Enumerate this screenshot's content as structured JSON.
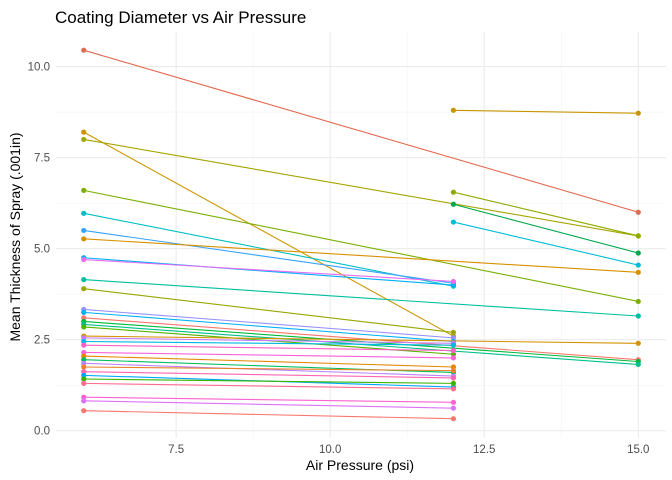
{
  "chart_data": {
    "type": "line",
    "title": "Coating Diameter vs Air Pressure",
    "xlabel": "Air Pressure (psi)",
    "ylabel": "Mean Thickness of Spray (.001in)",
    "xlim": [
      5.55,
      15.45
    ],
    "ylim": [
      -0.2,
      10.95
    ],
    "x_ticks": [
      7.5,
      10.0,
      12.5,
      15.0
    ],
    "x_tick_labels": [
      "7.5",
      "10.0",
      "12.5",
      "15.0"
    ],
    "y_ticks": [
      0.0,
      2.5,
      5.0,
      7.5,
      10.0
    ],
    "y_tick_labels": [
      "0.0",
      "2.5",
      "5.0",
      "7.5",
      "10.0"
    ],
    "grid": true,
    "legend": "none",
    "series": [
      {
        "color": "#E16A50",
        "points": [
          [
            6,
            10.45
          ],
          [
            15,
            6.0
          ]
        ]
      },
      {
        "color": "#C99400",
        "points": [
          [
            12,
            8.8
          ],
          [
            15,
            8.72
          ]
        ]
      },
      {
        "color": "#CD9600",
        "points": [
          [
            6,
            8.2
          ],
          [
            12,
            2.6
          ]
        ]
      },
      {
        "color": "#A3A500",
        "points": [
          [
            6,
            8.0
          ],
          [
            15,
            5.35
          ]
        ]
      },
      {
        "color": "#7CAE00",
        "points": [
          [
            6,
            6.6
          ],
          [
            15,
            3.55
          ]
        ]
      },
      {
        "color": "#8FAA00",
        "points": [
          [
            12,
            6.55
          ],
          [
            15,
            5.35
          ]
        ]
      },
      {
        "color": "#00A84C",
        "points": [
          [
            12,
            6.22
          ],
          [
            15,
            4.88
          ]
        ]
      },
      {
        "color": "#00BFC4",
        "points": [
          [
            6,
            5.97
          ],
          [
            12,
            3.97
          ]
        ]
      },
      {
        "color": "#00BCD8",
        "points": [
          [
            12,
            5.73
          ],
          [
            15,
            4.55
          ]
        ]
      },
      {
        "color": "#35A2FF",
        "points": [
          [
            6,
            5.5
          ],
          [
            12,
            4.05
          ]
        ]
      },
      {
        "color": "#D89000",
        "points": [
          [
            6,
            5.27
          ],
          [
            15,
            4.35
          ]
        ]
      },
      {
        "color": "#00B0F6",
        "points": [
          [
            6,
            4.75
          ],
          [
            12,
            4.0
          ]
        ]
      },
      {
        "color": "#E76BF3",
        "points": [
          [
            6,
            4.7
          ],
          [
            12,
            4.1
          ]
        ]
      },
      {
        "color": "#00BFA0",
        "points": [
          [
            6,
            4.15
          ],
          [
            15,
            3.15
          ]
        ]
      },
      {
        "color": "#9AA600",
        "points": [
          [
            6,
            3.9
          ],
          [
            12,
            2.7
          ]
        ]
      },
      {
        "color": "#9590FF",
        "points": [
          [
            6,
            3.33
          ],
          [
            12,
            2.55
          ]
        ]
      },
      {
        "color": "#00B0F6",
        "points": [
          [
            6,
            3.25
          ],
          [
            12,
            2.45
          ]
        ]
      },
      {
        "color": "#F8766D",
        "points": [
          [
            6,
            3.1
          ],
          [
            15,
            1.95
          ]
        ]
      },
      {
        "color": "#00BA38",
        "points": [
          [
            6,
            3.0
          ],
          [
            15,
            1.9
          ]
        ]
      },
      {
        "color": "#00C08B",
        "points": [
          [
            6,
            2.92
          ],
          [
            15,
            1.82
          ]
        ]
      },
      {
        "color": "#53B400",
        "points": [
          [
            6,
            2.85
          ],
          [
            12,
            2.1
          ]
        ]
      },
      {
        "color": "#D39200",
        "points": [
          [
            6,
            2.6
          ],
          [
            15,
            2.4
          ]
        ]
      },
      {
        "color": "#C77CFF",
        "points": [
          [
            6,
            2.55
          ],
          [
            12,
            2.4
          ]
        ]
      },
      {
        "color": "#00B9E3",
        "points": [
          [
            6,
            2.45
          ],
          [
            12,
            2.35
          ]
        ]
      },
      {
        "color": "#FF61C3",
        "points": [
          [
            6,
            2.35
          ],
          [
            12,
            2.2
          ]
        ]
      },
      {
        "color": "#FA62DB",
        "points": [
          [
            6,
            2.15
          ],
          [
            12,
            2.0
          ]
        ]
      },
      {
        "color": "#E58700",
        "points": [
          [
            6,
            2.05
          ],
          [
            12,
            1.75
          ]
        ]
      },
      {
        "color": "#00BD5C",
        "points": [
          [
            6,
            1.95
          ],
          [
            12,
            1.6
          ]
        ]
      },
      {
        "color": "#B983FF",
        "points": [
          [
            6,
            1.85
          ],
          [
            12,
            1.5
          ]
        ]
      },
      {
        "color": "#E9842C",
        "points": [
          [
            6,
            1.75
          ],
          [
            12,
            1.65
          ]
        ]
      },
      {
        "color": "#FF64B0",
        "points": [
          [
            6,
            1.62
          ],
          [
            12,
            1.45
          ]
        ]
      },
      {
        "color": "#00A5FF",
        "points": [
          [
            6,
            1.52
          ],
          [
            12,
            1.2
          ]
        ]
      },
      {
        "color": "#39B600",
        "points": [
          [
            6,
            1.42
          ],
          [
            12,
            1.3
          ]
        ]
      },
      {
        "color": "#FF6C91",
        "points": [
          [
            6,
            1.3
          ],
          [
            12,
            1.15
          ]
        ]
      },
      {
        "color": "#FD61D1",
        "points": [
          [
            6,
            0.92
          ],
          [
            12,
            0.78
          ]
        ]
      },
      {
        "color": "#DC71FA",
        "points": [
          [
            6,
            0.82
          ],
          [
            12,
            0.62
          ]
        ]
      },
      {
        "color": "#F8766D",
        "points": [
          [
            6,
            0.55
          ],
          [
            12,
            0.33
          ]
        ]
      }
    ]
  }
}
